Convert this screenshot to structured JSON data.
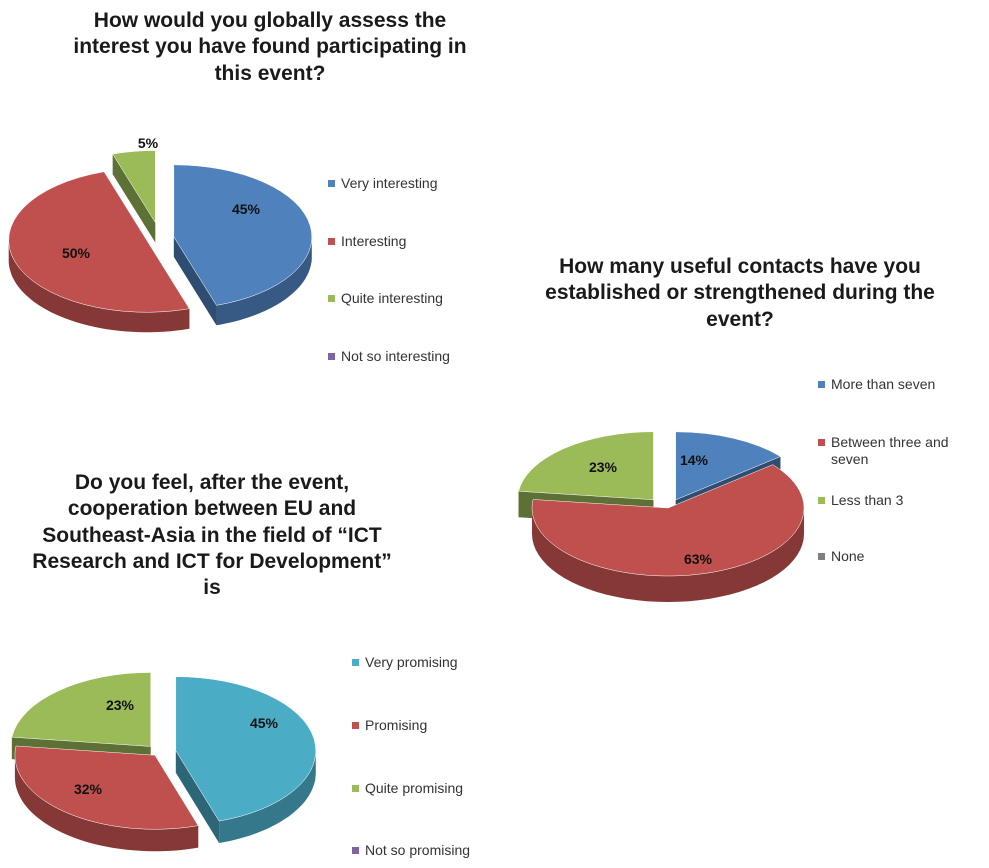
{
  "chart_data": [
    {
      "type": "pie",
      "title": "How would you globally assess the interest you have found participating in this event?",
      "categories": [
        "Very interesting",
        "Interesting",
        "Quite interesting",
        "Not so interesting"
      ],
      "values": [
        45,
        50,
        5,
        0
      ],
      "data_labels": [
        "45%",
        "50%",
        "5%",
        ""
      ],
      "colors": [
        "#4f81bd",
        "#c0504d",
        "#9bbb59",
        "#8064a2"
      ],
      "legend_position": "right"
    },
    {
      "type": "pie",
      "title": "How many useful contacts have you established or strengthened during the event?",
      "categories": [
        "More than seven",
        "Between three and seven",
        "Less than 3",
        "None"
      ],
      "values": [
        14,
        63,
        23,
        0
      ],
      "data_labels": [
        "14%",
        "63%",
        "23%",
        ""
      ],
      "colors": [
        "#4f81bd",
        "#c0504d",
        "#9bbb59",
        "#7f7f7f"
      ],
      "legend_position": "right"
    },
    {
      "type": "pie",
      "title": "Do you feel, after the event, cooperation between EU and Southeast-Asia in the field of “ICT Research and ICT for Development” is",
      "categories": [
        "Very promising",
        "Promising",
        "Quite promising",
        "Not so promising"
      ],
      "values": [
        45,
        32,
        23,
        0
      ],
      "data_labels": [
        "45%",
        "32%",
        "23%",
        ""
      ],
      "colors": [
        "#4bacc6",
        "#c0504d",
        "#9bbb59",
        "#8064a2"
      ],
      "legend_position": "right"
    }
  ]
}
